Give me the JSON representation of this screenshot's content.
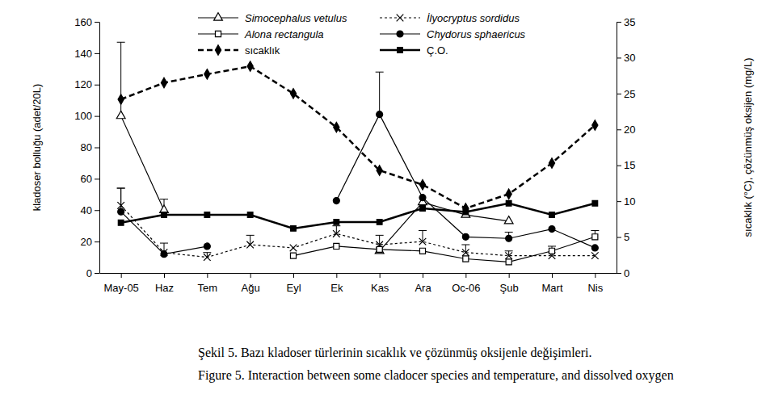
{
  "chart_data": {
    "type": "line",
    "title": "Şekil 5. Bazı kladoser türlerinin sıcaklık ve çözünmüş oksijenle değişimleri.",
    "subtitle": "Figure 5. Interaction between some cladocer species and temperature, and dissolved oxygen",
    "y_label": "kladoser bolluğu (adet/20L)",
    "y2_label": "sıcaklık (°C), çözünmüş oksijen (mg/L)",
    "categories": [
      "May-05",
      "Haz",
      "Tem",
      "Ağu",
      "Eyl",
      "Ek",
      "Kas",
      "Ara",
      "Oc-06",
      "Şub",
      "Mart",
      "Nis"
    ],
    "ylim": [
      0,
      160
    ],
    "yticks": [
      0,
      20,
      40,
      60,
      80,
      100,
      120,
      140,
      160
    ],
    "y2lim": [
      0,
      35
    ],
    "y2ticks": [
      0,
      5,
      10,
      15,
      20,
      25,
      30,
      35
    ],
    "grid": false,
    "legend": "top",
    "series": [
      {
        "name": "Simocephalus vetulus",
        "color": "#000000",
        "marker": "triangle-open",
        "line_style": "solid",
        "values": [
          100,
          40,
          null,
          null,
          null,
          null,
          14,
          45,
          37,
          33,
          null,
          null
        ],
        "errors": [
          47,
          7,
          null,
          null,
          null,
          null,
          null,
          null,
          null,
          null,
          null,
          null
        ]
      },
      {
        "name": "İlyocryptus sordidus",
        "color": "#000000",
        "marker": "x",
        "line_style": "dashed",
        "values": [
          43,
          13,
          10,
          18,
          16,
          25,
          18,
          20,
          13,
          11,
          11,
          11
        ],
        "errors": [
          11,
          6,
          3,
          6,
          null,
          5,
          6,
          7,
          5,
          3,
          null,
          null
        ]
      },
      {
        "name": "Alona rectangula",
        "color": "#000000",
        "marker": "square-open",
        "line_style": "solid",
        "values": [
          null,
          null,
          null,
          null,
          11,
          17,
          15,
          14,
          9,
          7,
          14,
          23
        ],
        "errors": [
          null,
          null,
          null,
          null,
          null,
          null,
          null,
          null,
          null,
          null,
          3,
          4
        ]
      },
      {
        "name": "Chydorus sphaericus",
        "color": "#000000",
        "marker": "circle",
        "line_style": "solid",
        "values": [
          39,
          12,
          17,
          null,
          null,
          46,
          101,
          48,
          23,
          22,
          28,
          16
        ],
        "errors": [
          15,
          null,
          null,
          null,
          null,
          null,
          27,
          null,
          null,
          4,
          null,
          null
        ]
      },
      {
        "name": "sıcaklık",
        "color": "#000000",
        "marker": "diamond",
        "line_style": "dashed",
        "axis": "y2",
        "values": [
          24.2,
          26.5,
          27.7,
          28.8,
          25,
          20.3,
          14.3,
          12.3,
          9,
          11,
          15.3,
          20.6
        ]
      },
      {
        "name": "Ç.O.",
        "color": "#000000",
        "marker": "square",
        "line_style": "solid",
        "axis": "y2",
        "values": [
          7,
          8.1,
          8.1,
          8.1,
          6.2,
          7.1,
          7.1,
          9,
          8.5,
          9.7,
          8.1,
          9.7
        ]
      }
    ]
  }
}
